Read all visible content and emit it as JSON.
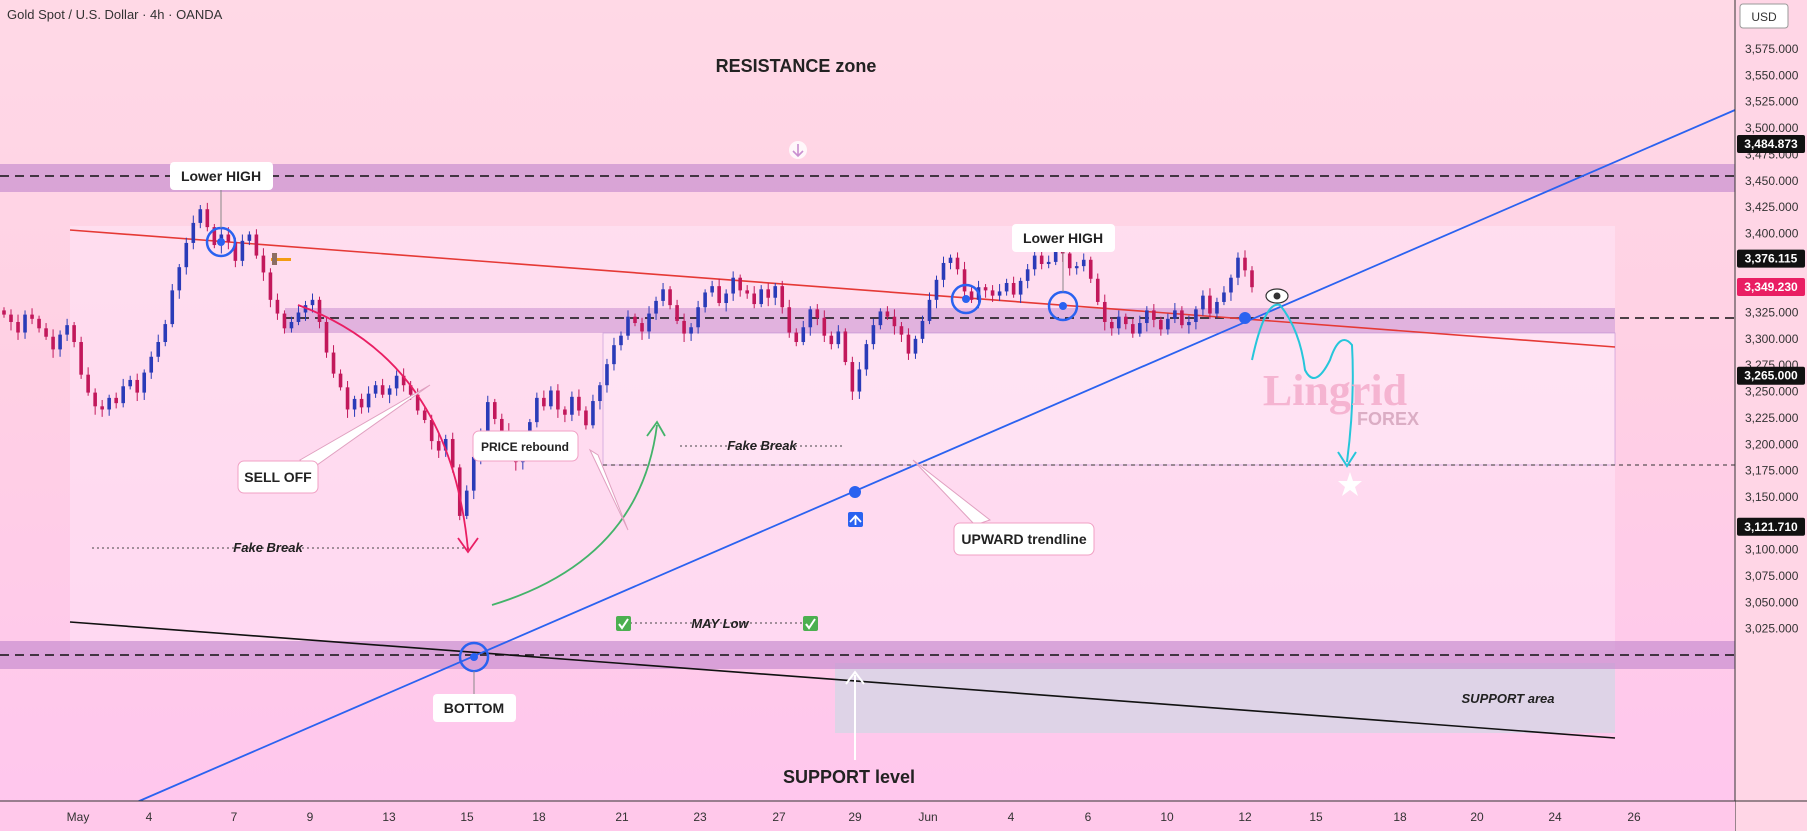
{
  "header": {
    "title": "Gold Spot / U.S. Dollar · 4h · OANDA",
    "currency": "USD"
  },
  "colors": {
    "bull": "#2a3bb8",
    "bear": "#c2185b",
    "trend": "#2a62f0",
    "resist": "#e53935",
    "zone": "#c98fd0"
  },
  "annotations": {
    "resistance_zone": "RESISTANCE zone",
    "lower_high_left": "Lower HIGH",
    "lower_high_right": "Lower HIGH",
    "sell_off": "SELL OFF",
    "price_rebound": "PRICE rebound",
    "fake_break_left": "Fake Break",
    "fake_break_mid": "Fake Break",
    "may_low": "MAY Low",
    "bottom": "BOTTOM",
    "upward_trendline": "UPWARD trendline",
    "support_area": "SUPPORT area",
    "support_level": "SUPPORT level",
    "watermark": "Lingrid",
    "watermark_sub": "FOREX"
  },
  "chart_data": {
    "type": "candlestick",
    "y_ticks": [
      "3,575.000",
      "3,550.000",
      "3,525.000",
      "3,500.000",
      "3,475.000",
      "3,450.000",
      "3,425.000",
      "3,400.000",
      "3,375.000",
      "3,350.000",
      "3,325.000",
      "3,300.000",
      "3,275.000",
      "3,250.000",
      "3,225.000",
      "3,200.000",
      "3,175.000",
      "3,150.000",
      "3,125.000",
      "3,100.000",
      "3,075.000",
      "3,050.000",
      "3,025.000"
    ],
    "y_values": [
      3575,
      3550,
      3525,
      3500,
      3475,
      3450,
      3425,
      3400,
      3375,
      3350,
      3325,
      3300,
      3275,
      3250,
      3225,
      3200,
      3175,
      3150,
      3125,
      3100,
      3075,
      3050,
      3025
    ],
    "ylim": [
      3012,
      3588
    ],
    "x_ticks": [
      "May",
      "4",
      "7",
      "9",
      "13",
      "15",
      "18",
      "21",
      "23",
      "27",
      "29",
      "Jun",
      "4",
      "6",
      "10",
      "12",
      "15",
      "18",
      "20",
      "24",
      "26"
    ],
    "price_labels": [
      {
        "label": "3,484.873",
        "value": 3484.873,
        "kind": "level"
      },
      {
        "label": "3,376.115",
        "value": 3376.115,
        "kind": "level"
      },
      {
        "label": "3,349.230",
        "value": 3349.23,
        "kind": "current"
      },
      {
        "label": "3,265.000",
        "value": 3265.0,
        "kind": "level"
      },
      {
        "label": "3,121.710",
        "value": 3121.71,
        "kind": "level"
      }
    ],
    "closes": [
      3323,
      3316,
      3306,
      3323,
      3319,
      3310,
      3302,
      3290,
      3304,
      3313,
      3297,
      3266,
      3249,
      3236,
      3233,
      3244,
      3239,
      3255,
      3261,
      3249,
      3268,
      3283,
      3297,
      3314,
      3346,
      3368,
      3391,
      3410,
      3423,
      3406,
      3389,
      3399,
      3392,
      3374,
      3393,
      3399,
      3379,
      3363,
      3337,
      3324,
      3310,
      3316,
      3325,
      3332,
      3337,
      3316,
      3287,
      3267,
      3254,
      3233,
      3243,
      3235,
      3248,
      3256,
      3247,
      3253,
      3265,
      3256,
      3247,
      3232,
      3223,
      3203,
      3194,
      3205,
      3178,
      3132,
      3156,
      3188,
      3211,
      3240,
      3224,
      3213,
      3192,
      3183,
      3199,
      3221,
      3244,
      3236,
      3251,
      3233,
      3228,
      3245,
      3232,
      3218,
      3241,
      3256,
      3276,
      3294,
      3303,
      3321,
      3315,
      3307,
      3324,
      3336,
      3347,
      3332,
      3317,
      3305,
      3311,
      3330,
      3344,
      3350,
      3334,
      3343,
      3358,
      3346,
      3343,
      3333,
      3347,
      3339,
      3350,
      3330,
      3306,
      3297,
      3311,
      3328,
      3320,
      3303,
      3295,
      3307,
      3278,
      3250,
      3271,
      3295,
      3313,
      3326,
      3321,
      3312,
      3304,
      3286,
      3300,
      3317,
      3337,
      3356,
      3372,
      3377,
      3366,
      3345,
      3337,
      3349,
      3346,
      3341,
      3345,
      3353,
      3342,
      3355,
      3366,
      3379,
      3371,
      3373,
      3393,
      3381,
      3367,
      3369,
      3375,
      3357,
      3335,
      3316,
      3310,
      3321,
      3314,
      3305,
      3315,
      3327,
      3318,
      3309,
      3319,
      3327,
      3313,
      3316,
      3328,
      3341,
      3324,
      3335,
      3344,
      3358,
      3377,
      3365,
      3349
    ]
  }
}
